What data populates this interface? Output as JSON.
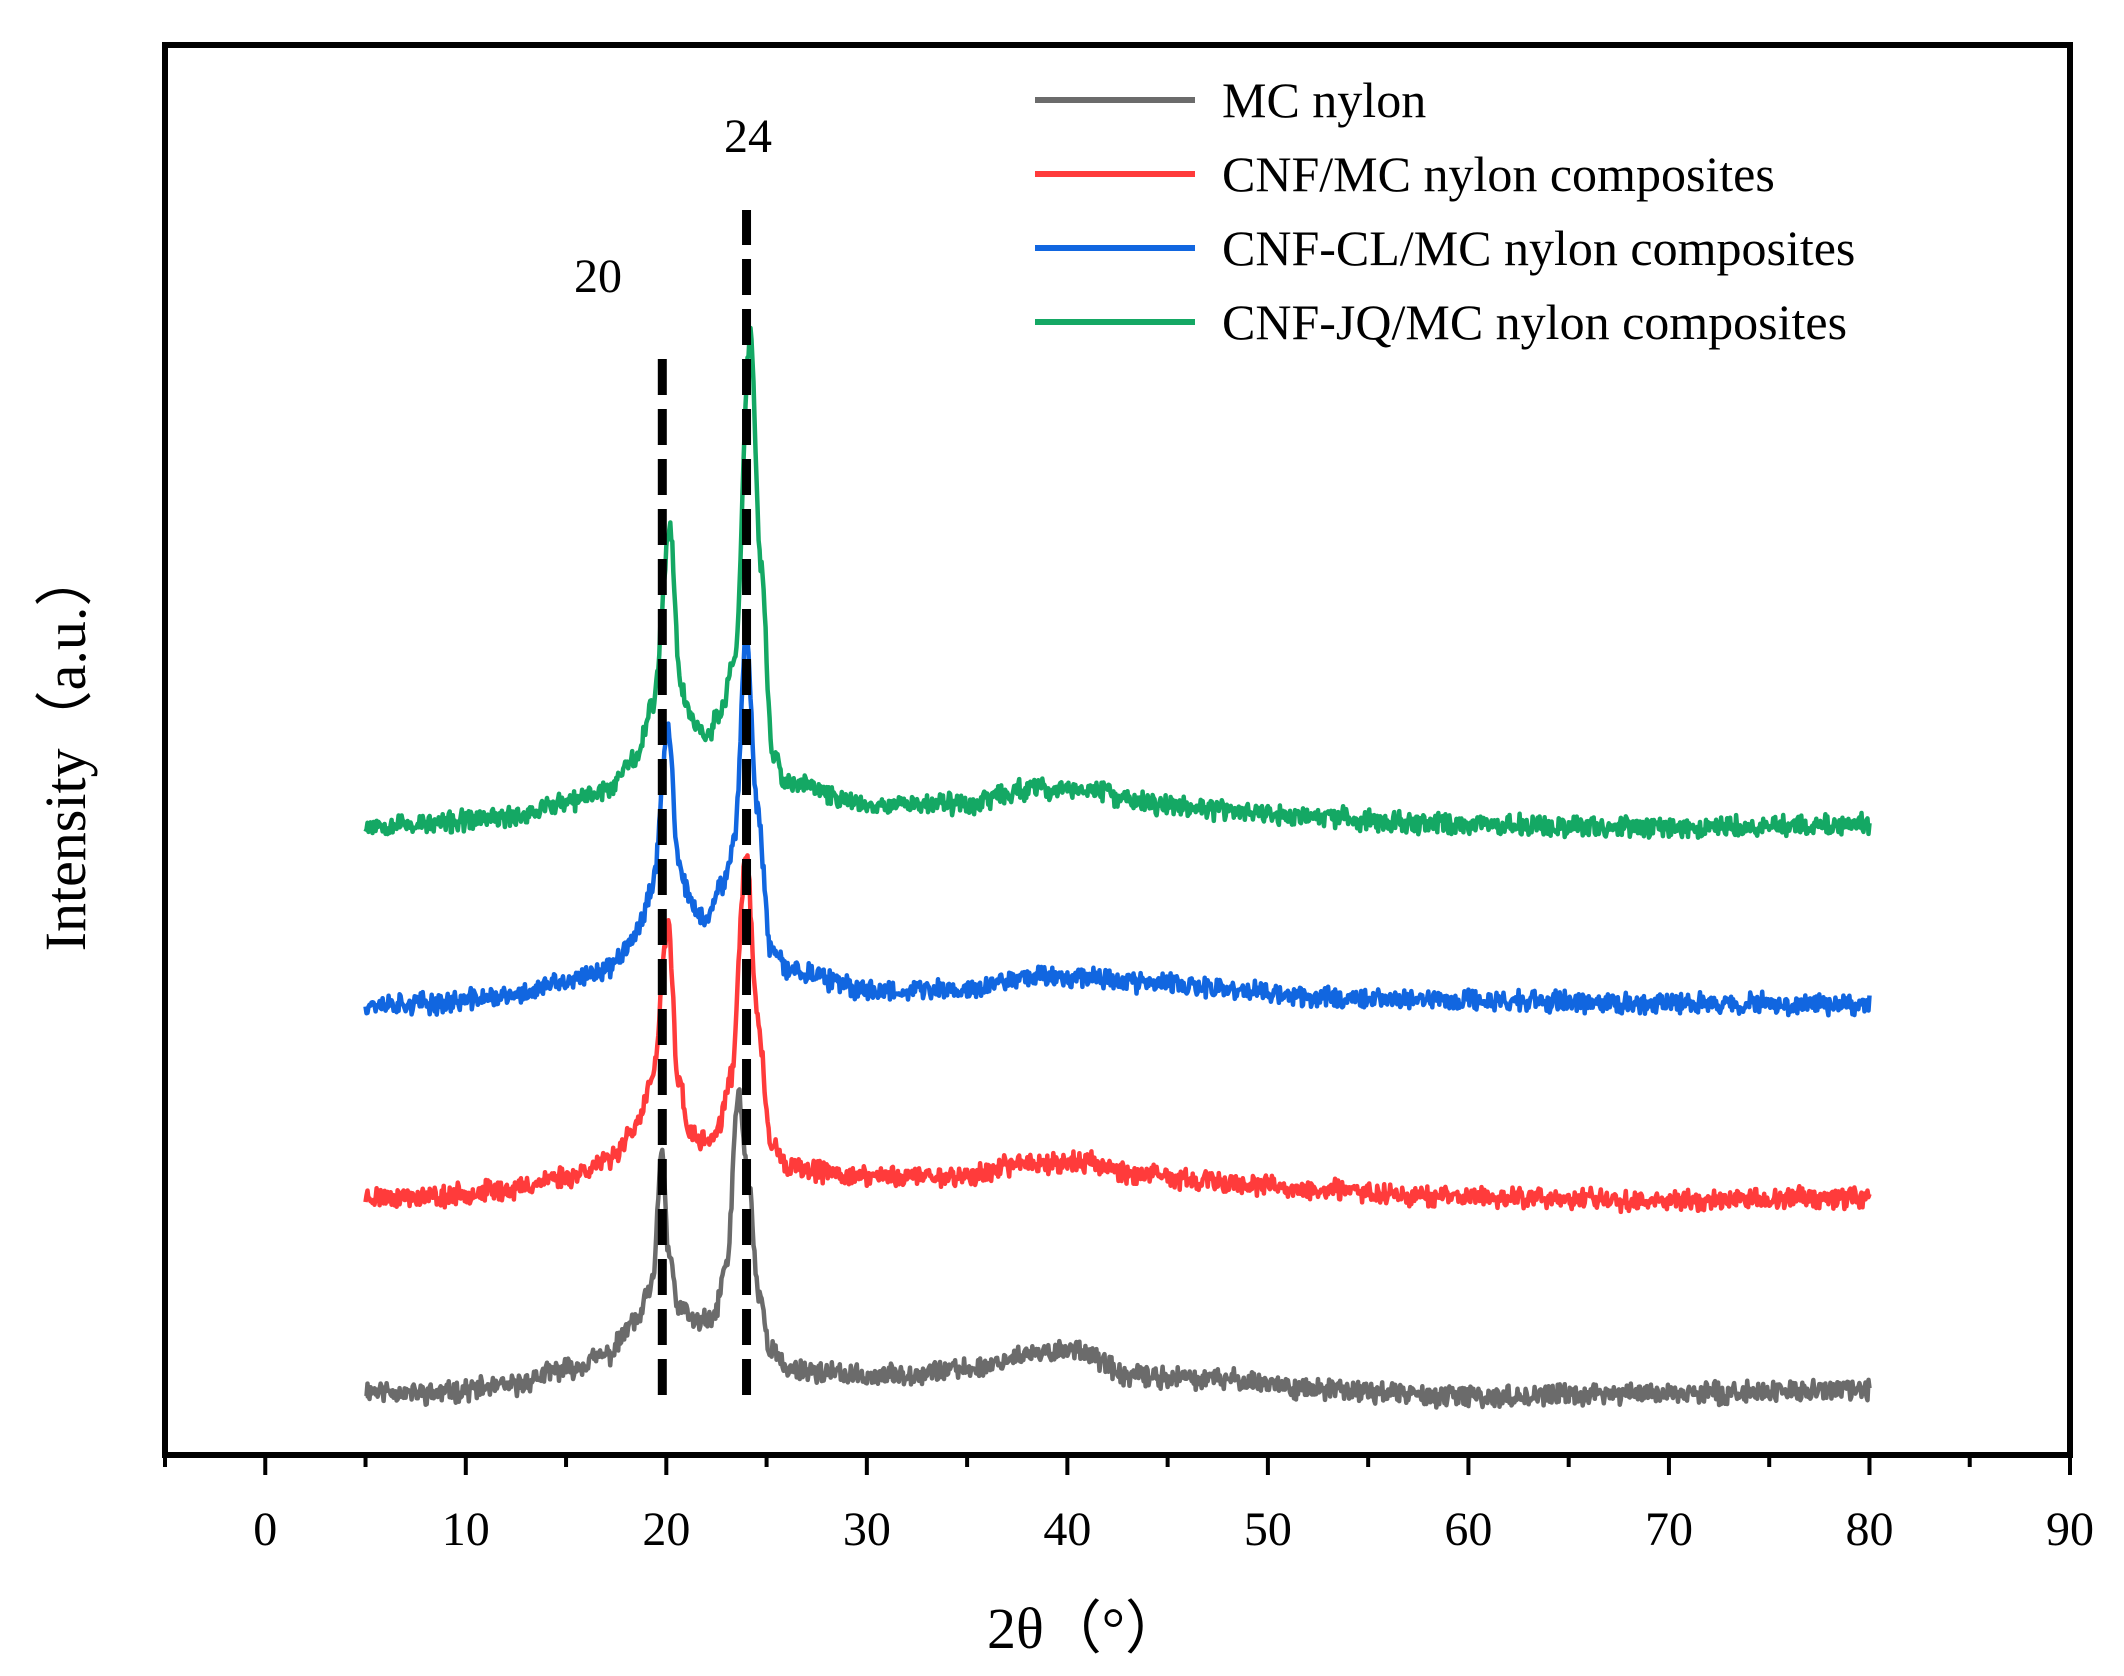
{
  "chart_data": {
    "type": "line",
    "title": "",
    "xlabel": "2θ（°）",
    "ylabel": "Intensity（a.u.）",
    "xlim": [
      -5,
      90
    ],
    "xticks": [
      0,
      10,
      20,
      30,
      40,
      50,
      60,
      70,
      80,
      90
    ],
    "xtick_labels": [
      "0",
      "10",
      "20",
      "30",
      "40",
      "50",
      "60",
      "70",
      "80",
      "90"
    ],
    "x_range": [
      5,
      80
    ],
    "y_ticks_shown": false,
    "legend_position": "top-right",
    "peak_markers": [
      {
        "x": 20,
        "label": "20"
      },
      {
        "x": 24,
        "label": "24"
      }
    ],
    "series": [
      {
        "name": "MC nylon",
        "color": "#6b6b6b",
        "baseline": 0.0,
        "noise": 0.012,
        "seed": 11,
        "points": [
          [
            5,
            0.0
          ],
          [
            8,
            -0.005
          ],
          [
            12,
            0.005
          ],
          [
            15,
            0.03
          ],
          [
            17,
            0.05
          ],
          [
            18.5,
            0.1
          ],
          [
            19.3,
            0.15
          ],
          [
            19.8,
            0.35
          ],
          [
            20.1,
            0.2
          ],
          [
            20.6,
            0.12
          ],
          [
            21.5,
            0.1
          ],
          [
            22.3,
            0.1
          ],
          [
            23.0,
            0.18
          ],
          [
            23.6,
            0.43
          ],
          [
            24.1,
            0.3
          ],
          [
            24.6,
            0.14
          ],
          [
            25.2,
            0.06
          ],
          [
            26,
            0.03
          ],
          [
            30,
            0.02
          ],
          [
            35,
            0.03
          ],
          [
            38,
            0.05
          ],
          [
            40.5,
            0.06
          ],
          [
            43,
            0.02
          ],
          [
            48,
            0.015
          ],
          [
            53,
            0.0
          ],
          [
            60,
            -0.01
          ],
          [
            70,
            -0.005
          ],
          [
            80,
            0.0
          ]
        ]
      },
      {
        "name": "CNF/MC nylon composites",
        "color": "#ff3b3b",
        "baseline": 0.28,
        "noise": 0.012,
        "seed": 23,
        "points": [
          [
            5,
            0.28
          ],
          [
            8,
            0.28
          ],
          [
            12,
            0.29
          ],
          [
            15,
            0.31
          ],
          [
            17,
            0.33
          ],
          [
            18.5,
            0.38
          ],
          [
            19.3,
            0.45
          ],
          [
            20.1,
            0.67
          ],
          [
            20.6,
            0.45
          ],
          [
            21.2,
            0.37
          ],
          [
            21.8,
            0.36
          ],
          [
            22.5,
            0.37
          ],
          [
            23.2,
            0.45
          ],
          [
            24.0,
            0.78
          ],
          [
            24.5,
            0.55
          ],
          [
            25.2,
            0.36
          ],
          [
            26,
            0.32
          ],
          [
            30,
            0.31
          ],
          [
            35,
            0.31
          ],
          [
            38,
            0.33
          ],
          [
            41,
            0.33
          ],
          [
            44,
            0.31
          ],
          [
            48,
            0.3
          ],
          [
            52,
            0.29
          ],
          [
            60,
            0.28
          ],
          [
            70,
            0.275
          ],
          [
            80,
            0.28
          ]
        ]
      },
      {
        "name": "CNF-CL/MC nylon composites",
        "color": "#1166e0",
        "baseline": 0.56,
        "noise": 0.012,
        "seed": 37,
        "points": [
          [
            5,
            0.56
          ],
          [
            8,
            0.56
          ],
          [
            12,
            0.57
          ],
          [
            15,
            0.59
          ],
          [
            17,
            0.61
          ],
          [
            18.5,
            0.66
          ],
          [
            19.3,
            0.73
          ],
          [
            20.1,
            0.96
          ],
          [
            20.6,
            0.76
          ],
          [
            21.3,
            0.7
          ],
          [
            22,
            0.68
          ],
          [
            22.8,
            0.73
          ],
          [
            23.4,
            0.8
          ],
          [
            24.0,
            1.1
          ],
          [
            24.5,
            0.85
          ],
          [
            25.2,
            0.64
          ],
          [
            26,
            0.61
          ],
          [
            30,
            0.58
          ],
          [
            35,
            0.58
          ],
          [
            38,
            0.6
          ],
          [
            41,
            0.6
          ],
          [
            44,
            0.59
          ],
          [
            48,
            0.58
          ],
          [
            52,
            0.57
          ],
          [
            60,
            0.565
          ],
          [
            70,
            0.56
          ],
          [
            80,
            0.56
          ]
        ]
      },
      {
        "name": "CNF-JQ/MC nylon composites",
        "color": "#14a864",
        "baseline": 0.82,
        "noise": 0.012,
        "seed": 53,
        "points": [
          [
            5,
            0.82
          ],
          [
            8,
            0.82
          ],
          [
            12,
            0.83
          ],
          [
            15,
            0.85
          ],
          [
            17,
            0.87
          ],
          [
            18.5,
            0.92
          ],
          [
            19.3,
            0.99
          ],
          [
            20.2,
            1.25
          ],
          [
            20.7,
            1.02
          ],
          [
            21.3,
            0.97
          ],
          [
            22,
            0.95
          ],
          [
            22.7,
            0.98
          ],
          [
            23.4,
            1.06
          ],
          [
            24.2,
            1.53
          ],
          [
            24.7,
            1.2
          ],
          [
            25.3,
            0.92
          ],
          [
            26,
            0.88
          ],
          [
            30,
            0.85
          ],
          [
            35,
            0.85
          ],
          [
            38,
            0.87
          ],
          [
            41,
            0.87
          ],
          [
            44,
            0.85
          ],
          [
            48,
            0.84
          ],
          [
            52,
            0.83
          ],
          [
            60,
            0.82
          ],
          [
            70,
            0.815
          ],
          [
            80,
            0.82
          ]
        ]
      }
    ]
  }
}
